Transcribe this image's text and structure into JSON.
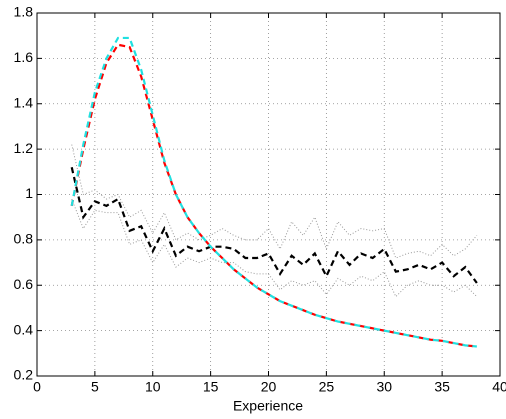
{
  "chart_data": {
    "type": "line",
    "x_label": "Experience",
    "x": [
      3,
      4,
      5,
      6,
      7,
      8,
      9,
      10,
      11,
      12,
      13,
      14,
      15,
      16,
      17,
      18,
      19,
      20,
      21,
      22,
      23,
      24,
      25,
      26,
      27,
      28,
      29,
      30,
      31,
      32,
      33,
      34,
      35,
      36,
      37,
      38
    ],
    "series": [
      {
        "color": "#999999",
        "dash": "dotted",
        "values": [
          1.22,
          1.0,
          1.02,
          0.98,
          1.0,
          0.9,
          0.93,
          0.83,
          0.92,
          0.8,
          0.83,
          0.8,
          0.82,
          0.85,
          0.82,
          0.8,
          0.8,
          0.85,
          0.76,
          0.88,
          0.82,
          0.9,
          0.76,
          0.88,
          0.82,
          0.85,
          0.84,
          0.85,
          0.72,
          0.74,
          0.75,
          0.73,
          0.78,
          0.73,
          0.76,
          0.82
        ]
      },
      {
        "color": "#999999",
        "dash": "dotted",
        "values": [
          0.98,
          0.85,
          0.93,
          0.92,
          0.92,
          0.78,
          0.8,
          0.7,
          0.78,
          0.68,
          0.72,
          0.7,
          0.72,
          0.7,
          0.7,
          0.66,
          0.65,
          0.65,
          0.58,
          0.62,
          0.6,
          0.62,
          0.56,
          0.63,
          0.6,
          0.64,
          0.62,
          0.66,
          0.55,
          0.6,
          0.62,
          0.6,
          0.6,
          0.57,
          0.6,
          0.55
        ]
      },
      {
        "color": "#000000",
        "dash": "dashed",
        "values": [
          1.12,
          0.9,
          0.97,
          0.95,
          0.98,
          0.84,
          0.86,
          0.75,
          0.85,
          0.73,
          0.77,
          0.75,
          0.77,
          0.77,
          0.76,
          0.72,
          0.72,
          0.74,
          0.65,
          0.73,
          0.69,
          0.74,
          0.64,
          0.75,
          0.69,
          0.74,
          0.72,
          0.76,
          0.66,
          0.67,
          0.69,
          0.67,
          0.7,
          0.64,
          0.68,
          0.61
        ]
      },
      {
        "color": "#ff0000",
        "dash": "dashed",
        "values": [
          0.95,
          1.2,
          1.42,
          1.58,
          1.66,
          1.65,
          1.52,
          1.33,
          1.14,
          1.0,
          0.9,
          0.83,
          0.77,
          0.72,
          0.67,
          0.63,
          0.59,
          0.56,
          0.53,
          0.51,
          0.49,
          0.47,
          0.455,
          0.44,
          0.43,
          0.42,
          0.41,
          0.4,
          0.39,
          0.38,
          0.37,
          0.36,
          0.355,
          0.345,
          0.335,
          0.33
        ]
      },
      {
        "color": "#20e0e0",
        "dash": "dashed",
        "values": [
          0.95,
          1.22,
          1.45,
          1.6,
          1.69,
          1.69,
          1.55,
          1.35,
          1.15,
          1.0,
          0.9,
          0.83,
          0.77,
          0.72,
          0.67,
          0.63,
          0.59,
          0.56,
          0.53,
          0.51,
          0.49,
          0.47,
          0.455,
          0.44,
          0.43,
          0.42,
          0.41,
          0.4,
          0.39,
          0.38,
          0.37,
          0.36,
          0.355,
          0.345,
          0.335,
          0.33
        ]
      }
    ],
    "xlim": [
      0,
      40
    ],
    "xticks": [
      0,
      5,
      10,
      15,
      20,
      25,
      30,
      35,
      40
    ],
    "ylim": [
      0.2,
      1.8
    ],
    "yticks": [
      0.2,
      0.4,
      0.6,
      0.8,
      1,
      1.2,
      1.4,
      1.6,
      1.8
    ],
    "grid": true
  }
}
